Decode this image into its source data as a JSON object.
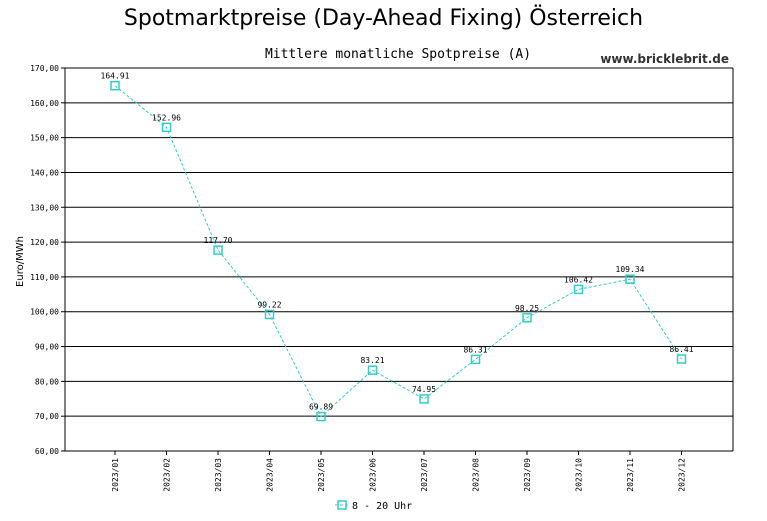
{
  "chart_data": {
    "type": "line",
    "title": "Spotmarktpreise (Day-Ahead Fixing) Österreich",
    "subtitle": "Mittlere monatliche Spotpreise (A)",
    "watermark": "www.bricklebrit.de",
    "ylabel": "Euro/MWh",
    "xlabel": "",
    "ylim": [
      60,
      170
    ],
    "y_ticks": [
      "60,00",
      "70,00",
      "80,00",
      "90,00",
      "100,00",
      "110,00",
      "120,00",
      "130,00",
      "140,00",
      "150,00",
      "160,00",
      "170,00"
    ],
    "categories": [
      "2023/01",
      "2023/02",
      "2023/03",
      "2023/04",
      "2023/05",
      "2023/06",
      "2023/07",
      "2023/08",
      "2023/09",
      "2023/10",
      "2023/11",
      "2023/12"
    ],
    "series": [
      {
        "name": "8 - 20 Uhr",
        "color": "#33cccc",
        "values": [
          164.91,
          152.96,
          117.7,
          99.22,
          69.89,
          83.21,
          74.95,
          86.31,
          98.25,
          106.42,
          109.34,
          86.41
        ],
        "labels": [
          "164.91",
          "152.96",
          "117.70",
          "99.22",
          "69.89",
          "83.21",
          "74.95",
          "86.31",
          "98.25",
          "106.42",
          "109.34",
          "86.41"
        ]
      }
    ],
    "grid": true,
    "legend_position": "bottom-center"
  }
}
